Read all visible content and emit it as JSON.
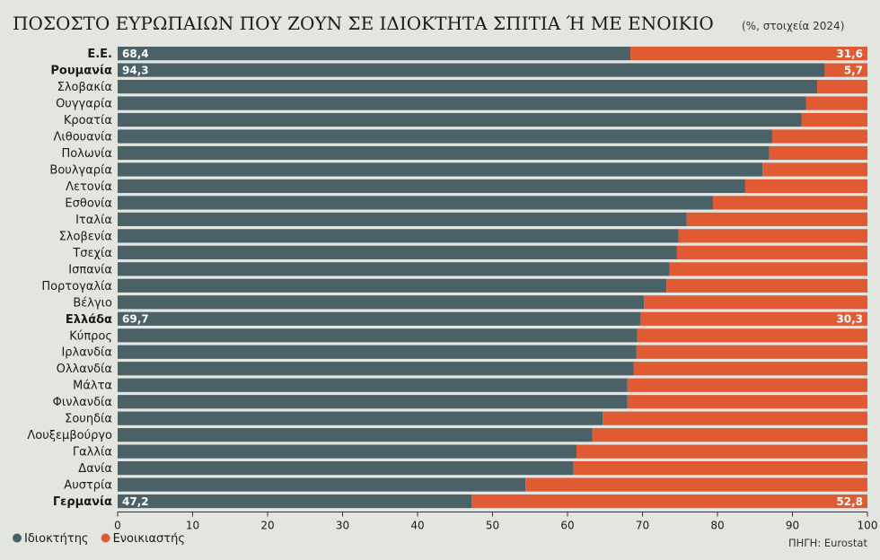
{
  "chart_data": {
    "type": "bar",
    "orientation": "horizontal",
    "stacked": true,
    "title": "ΠΟΣΟΣΤΟ ΕΥΡΩΠΑΙΩΝ ΠΟΥ ΖΟΥΝ ΣΕ ΙΔΙΟΚΤΗΤΑ ΣΠΙΤΙΑ Ή ΜΕ ΕΝΟΙΚΙΟ",
    "subtitle": "(%, στοιχεία 2024)",
    "source": "ΠΗΓΗ: Eurostat",
    "categories": [
      "Ε.Ε.",
      "Ρουμανία",
      "Σλοβακία",
      "Ουγγαρία",
      "Κροατία",
      "Λιθουανία",
      "Πολωνία",
      "Βουλγαρία",
      "Λετονία",
      "Εσθονία",
      "Ιταλία",
      "Σλοβενία",
      "Τσεχία",
      "Ισπανία",
      "Πορτογαλία",
      "Βέλγιο",
      "Ελλάδα",
      "Κύπρος",
      "Ιρλανδία",
      "Ολλανδία",
      "Μάλτα",
      "Φινλανδία",
      "Σουηδία",
      "Λουξεμβούργο",
      "Γαλλία",
      "Δανία",
      "Αυστρία",
      "Γερμανία"
    ],
    "highlighted": [
      "Ε.Ε.",
      "Ρουμανία",
      "Ελλάδα",
      "Γερμανία"
    ],
    "series": [
      {
        "name": "Ιδιοκτήτης",
        "color": "#4a6168",
        "values": [
          68.4,
          94.3,
          93.3,
          91.8,
          91.2,
          87.3,
          86.9,
          86.0,
          83.7,
          79.4,
          75.9,
          74.8,
          74.6,
          73.6,
          73.2,
          70.2,
          69.7,
          69.3,
          69.2,
          68.8,
          68.0,
          68.0,
          64.7,
          63.3,
          61.2,
          60.8,
          54.4,
          47.2
        ]
      },
      {
        "name": "Ενοικιαστής",
        "color": "#e05a33",
        "values": [
          31.6,
          5.7,
          6.7,
          8.2,
          8.8,
          12.7,
          13.1,
          14.0,
          16.3,
          20.6,
          24.1,
          25.2,
          25.4,
          26.4,
          26.8,
          29.8,
          30.3,
          30.7,
          30.8,
          31.2,
          32.0,
          32.0,
          35.3,
          36.7,
          38.8,
          39.2,
          45.6,
          52.8
        ]
      }
    ],
    "labels": [
      {
        "category": "Ε.Ε.",
        "owner": "68,4",
        "renter": "31,6"
      },
      {
        "category": "Ρουμανία",
        "owner": "94,3",
        "renter": "5,7"
      },
      {
        "category": "Ελλάδα",
        "owner": "69,7",
        "renter": "30,3"
      },
      {
        "category": "Γερμανία",
        "owner": "47,2",
        "renter": "52,8"
      }
    ],
    "xlim": [
      0,
      100
    ],
    "xticks": [
      "0",
      "10",
      "20",
      "30",
      "40",
      "50",
      "60",
      "70",
      "80",
      "90",
      "100"
    ],
    "legend_position": "bottom-left"
  }
}
